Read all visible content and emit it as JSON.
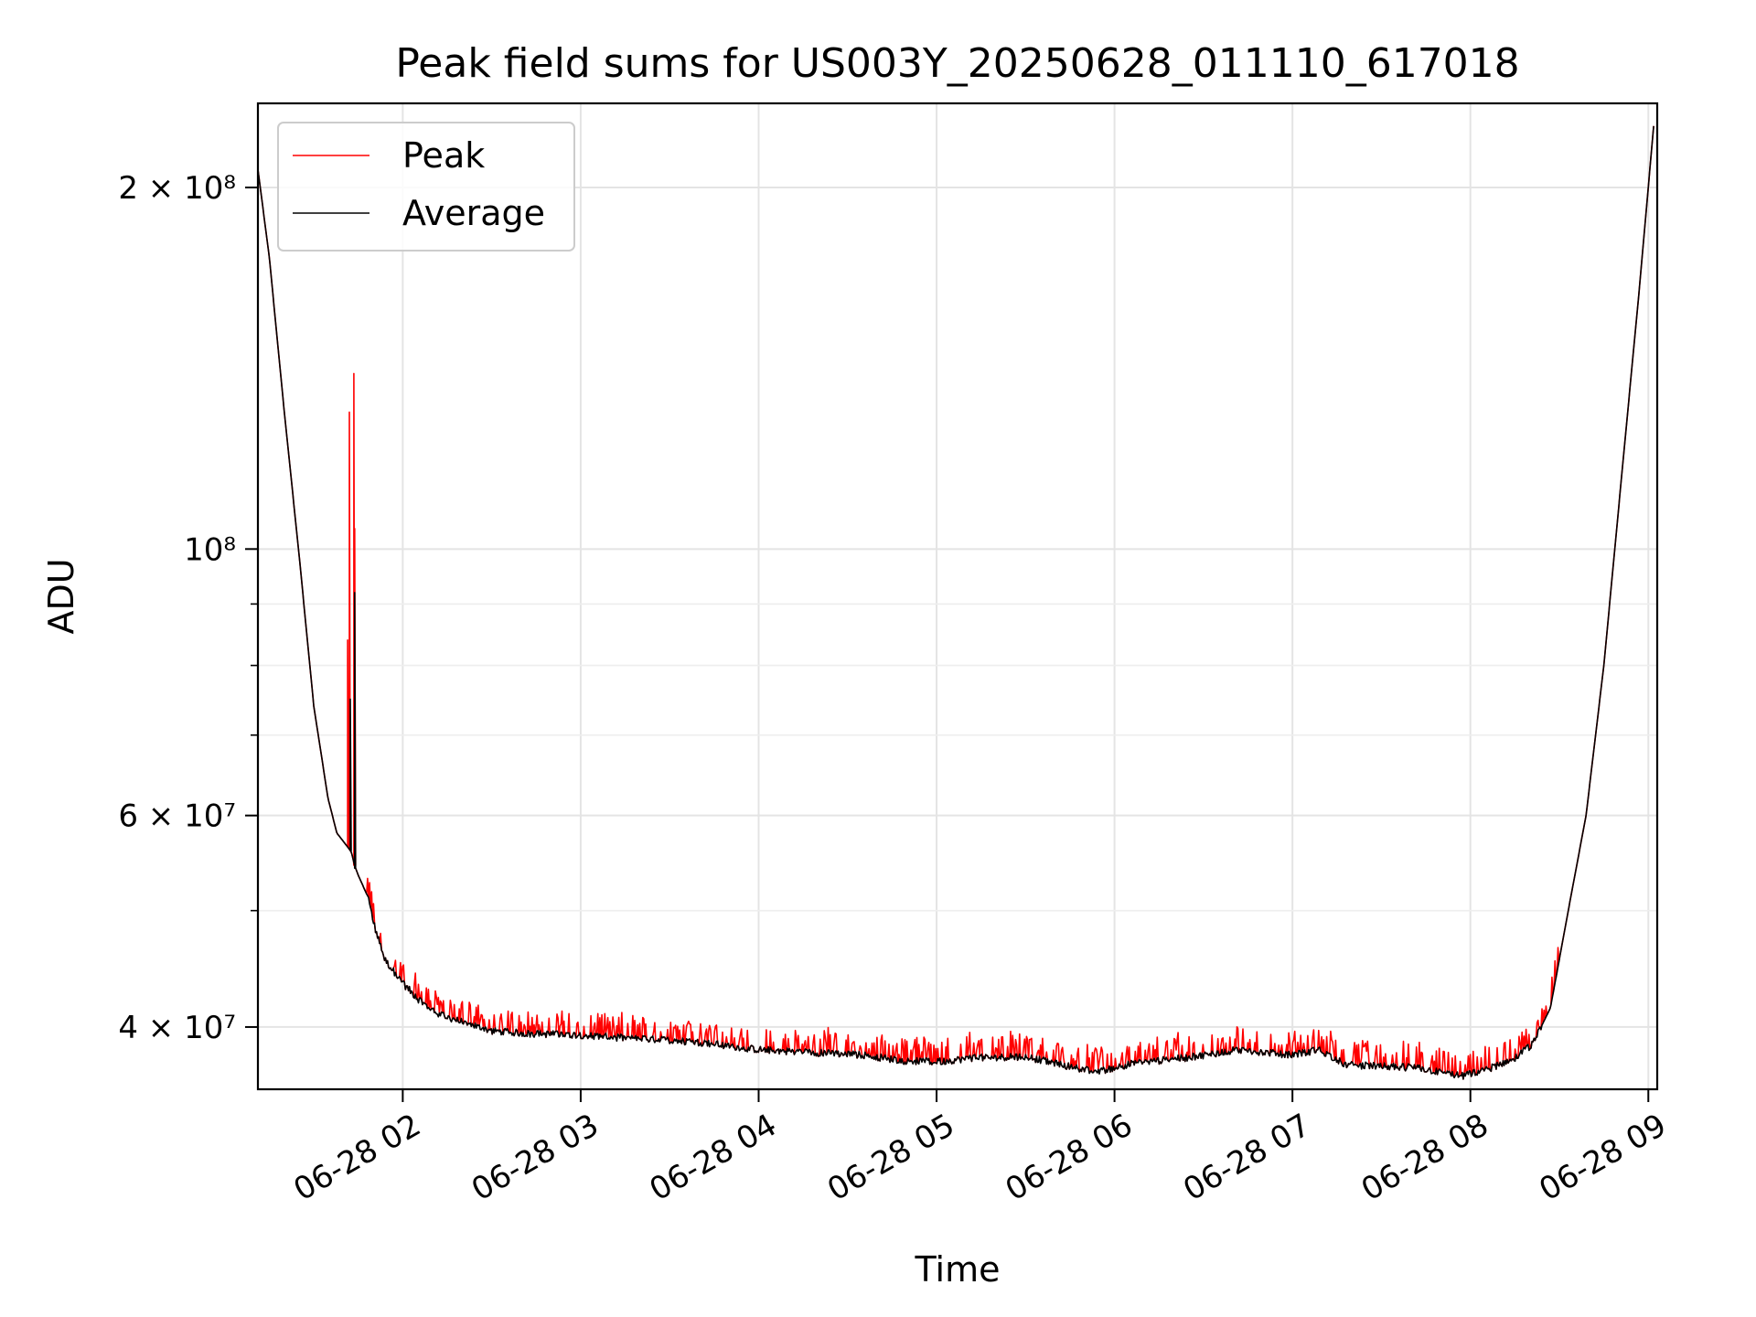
{
  "chart_data": {
    "type": "line",
    "title": "Peak field sums for US003Y_20250628_011110_617018",
    "xlabel": "Time",
    "ylabel": "ADU",
    "x_range": [
      "06-28 01:11:10",
      "06-28 09:03:00"
    ],
    "xlim_hours": [
      1.186,
      9.05
    ],
    "ylim": [
      35500000,
      235000000
    ],
    "yscale": "log",
    "grid": true,
    "legend_position": "upper-left",
    "x_ticks": [
      {
        "value": 2,
        "label": "06-28 02"
      },
      {
        "value": 3,
        "label": "06-28 03"
      },
      {
        "value": 4,
        "label": "06-28 04"
      },
      {
        "value": 5,
        "label": "06-28 05"
      },
      {
        "value": 6,
        "label": "06-28 06"
      },
      {
        "value": 7,
        "label": "06-28 07"
      },
      {
        "value": 8,
        "label": "06-28 08"
      },
      {
        "value": 9,
        "label": "06-28 09"
      }
    ],
    "y_ticks": [
      {
        "value": 40000000,
        "label": "4 × 10⁷"
      },
      {
        "value": 60000000,
        "label": "6 × 10⁷"
      },
      {
        "value": 100000000,
        "label": "10⁸"
      },
      {
        "value": 200000000,
        "label": "2 × 10⁸"
      }
    ],
    "y_minor_ticks": [
      50000000,
      70000000,
      80000000,
      90000000
    ],
    "series": [
      {
        "name": "Average",
        "color": "#000000",
        "x_hours": [
          1.186,
          1.25,
          1.33,
          1.42,
          1.5,
          1.58,
          1.63,
          1.67,
          1.71,
          1.73,
          1.75,
          1.8,
          1.85,
          1.9,
          2.0,
          2.1,
          2.2,
          2.35,
          2.5,
          2.7,
          3.0,
          3.2,
          3.5,
          3.7,
          4.0,
          4.3,
          4.6,
          4.8,
          5.0,
          5.2,
          5.5,
          5.7,
          5.9,
          6.1,
          6.4,
          6.7,
          7.0,
          7.15,
          7.3,
          7.5,
          7.7,
          7.95,
          8.1,
          8.25,
          8.35,
          8.45,
          8.55,
          8.65,
          8.75,
          8.85,
          8.95,
          9.03
        ],
        "values": [
          207000000,
          175000000,
          132000000,
          98000000,
          74000000,
          62000000,
          58000000,
          57000000,
          56000000,
          54500000,
          53500000,
          51500000,
          48000000,
          45500000,
          43500000,
          42000000,
          41000000,
          40300000,
          39700000,
          39500000,
          39400000,
          39200000,
          39000000,
          38800000,
          38300000,
          38100000,
          37900000,
          37500000,
          37400000,
          37700000,
          37800000,
          37200000,
          36700000,
          37300000,
          37700000,
          38300000,
          37900000,
          38300000,
          37200000,
          37100000,
          37000000,
          36400000,
          36900000,
          37700000,
          38700000,
          41500000,
          50000000,
          60000000,
          80000000,
          115000000,
          165000000,
          225000000
        ]
      },
      {
        "name": "Peak",
        "color": "#ff0000",
        "spikes": [
          {
            "x_hours": 1.69,
            "value": 84000000
          },
          {
            "x_hours": 1.7,
            "value": 130000000
          },
          {
            "x_hours": 1.725,
            "value": 140000000
          },
          {
            "x_hours": 1.73,
            "value": 104000000
          }
        ],
        "typical_excess_over_average_pct": 3
      }
    ]
  }
}
